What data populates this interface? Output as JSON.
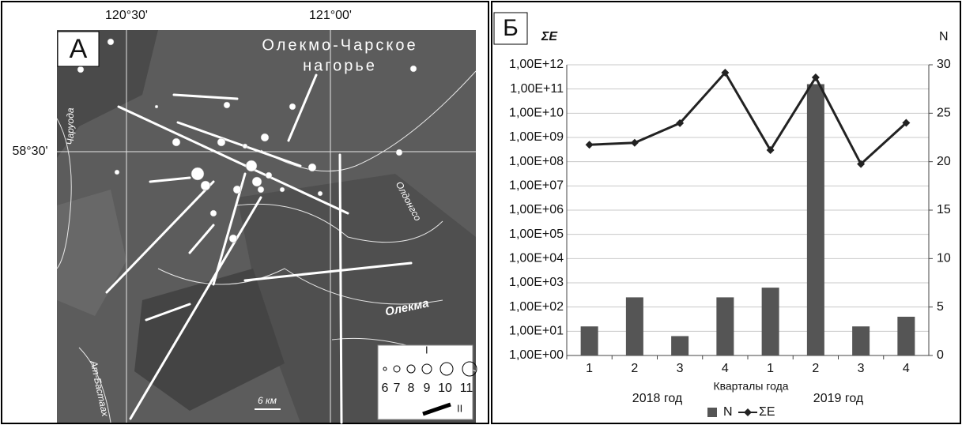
{
  "map": {
    "panel_label": "А",
    "lon_labels": [
      "120°30'",
      "121°00'"
    ],
    "lat_label": "58°30'",
    "region": [
      "Олекмо-Чарское",
      "нагорье"
    ],
    "rivers": [
      "Чаруода",
      "Олдонгсо",
      "Олекма",
      "Ат-Бастаах"
    ],
    "scale": "6 км",
    "legend": {
      "group1": "I",
      "magnitudes": [
        "6",
        "7",
        "8",
        "9",
        "10",
        "11"
      ],
      "group2": "II"
    }
  },
  "chart_data": {
    "type": "bar",
    "panel_label": "Б",
    "y_label": "ΣE",
    "y2_label": "N",
    "x_label": "Кварталы года",
    "categories": [
      "1",
      "2",
      "3",
      "4",
      "1",
      "2",
      "3",
      "4"
    ],
    "groups": [
      "2018 год",
      "2019 год"
    ],
    "series": [
      {
        "name": "N",
        "type": "bar",
        "axis": "y2",
        "color": "#555555",
        "values": [
          3,
          6,
          2,
          6,
          7,
          28,
          3,
          4
        ]
      },
      {
        "name": "ΣE",
        "type": "line",
        "color": "#222222",
        "values": [
          500000000,
          600000000,
          3900000000,
          470000000000,
          300000000,
          300000000000,
          80000000,
          4000000000
        ]
      }
    ],
    "ylog": true,
    "ylim": [
      1,
      1000000000000
    ],
    "yticks": [
      {
        "value": 1,
        "label": "1,00E+00"
      },
      {
        "value": 10,
        "label": "1,00E+01"
      },
      {
        "value": 100,
        "label": "1,00E+02"
      },
      {
        "value": 1000,
        "label": "1,00E+03"
      },
      {
        "value": 10000,
        "label": "1,00E+04"
      },
      {
        "value": 100000,
        "label": "1,00E+05"
      },
      {
        "value": 1000000,
        "label": "1,00E+06"
      },
      {
        "value": 10000000,
        "label": "1,00E+07"
      },
      {
        "value": 100000000,
        "label": "1,00E+08"
      },
      {
        "value": 1000000000,
        "label": "1,00E+09"
      },
      {
        "value": 10000000000,
        "label": "1,00E+10"
      },
      {
        "value": 100000000000,
        "label": "1,00E+11"
      },
      {
        "value": 1000000000000,
        "label": "1,00E+12"
      }
    ],
    "y2lim": [
      0,
      30
    ],
    "y2ticks": [
      0,
      5,
      10,
      15,
      20,
      25,
      30
    ],
    "grid": true,
    "legend": "bottom"
  }
}
